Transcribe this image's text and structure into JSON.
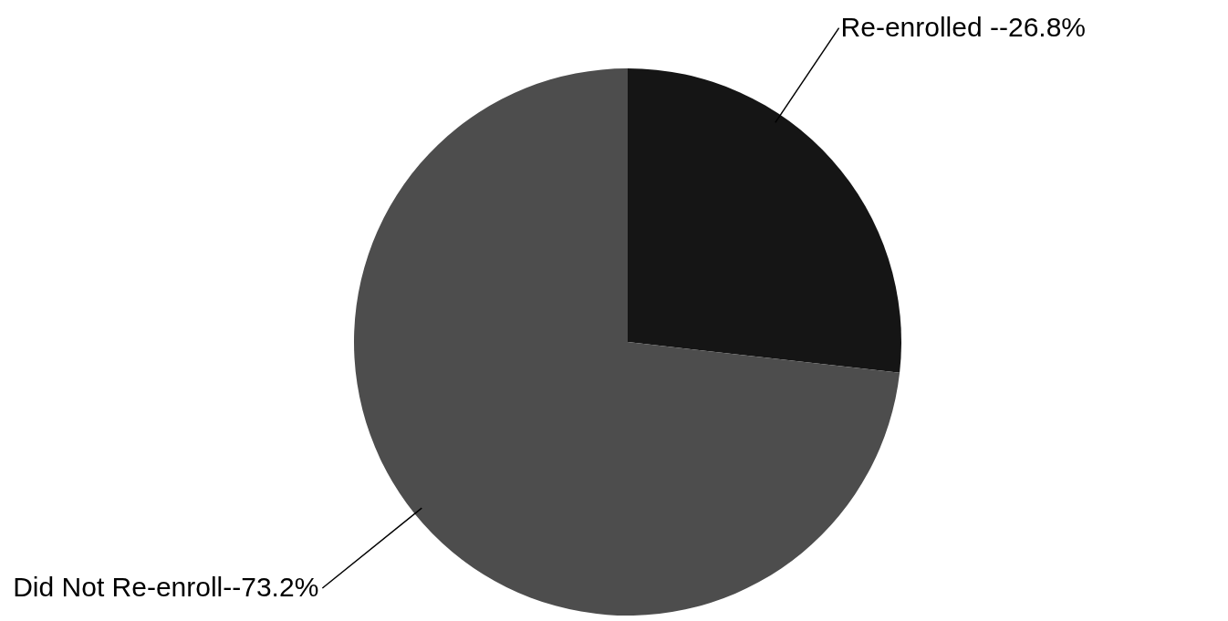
{
  "chart_data": {
    "type": "pie",
    "categories": [
      "Re-enrolled --",
      "Did Not Re-enroll--"
    ],
    "values": [
      26.8,
      73.2
    ],
    "value_labels": [
      "26.8%",
      "73.2%"
    ],
    "colors": [
      "#151515",
      "#4d4d4d"
    ]
  }
}
